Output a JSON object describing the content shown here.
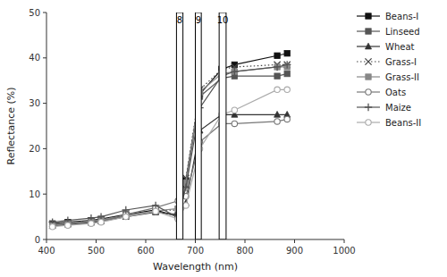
{
  "chart_data": {
    "type": "line",
    "xlabel": "Wavelength (nm)",
    "ylabel": "Reflectance (%)",
    "x": [
      412,
      443,
      490,
      510,
      560,
      620,
      665,
      681,
      709,
      753,
      779,
      865,
      885
    ],
    "series": [
      {
        "name": "Beans-I",
        "color": "#111111",
        "marker": "square",
        "line_style": "solid",
        "values": [
          3.5,
          3.8,
          4.2,
          4.5,
          5.5,
          6.5,
          5.0,
          13.0,
          32.0,
          37.5,
          38.5,
          40.5,
          41.0
        ]
      },
      {
        "name": "Linseed",
        "color": "#555555",
        "marker": "square",
        "line_style": "solid",
        "values": [
          3.2,
          3.5,
          3.9,
          4.2,
          5.2,
          6.2,
          5.2,
          12.0,
          31.5,
          35.5,
          36.0,
          36.0,
          36.5
        ]
      },
      {
        "name": "Wheat",
        "color": "#333333",
        "marker": "triangle",
        "line_style": "solid",
        "values": [
          3.0,
          3.3,
          3.7,
          4.0,
          5.0,
          6.0,
          5.5,
          8.0,
          24.0,
          27.5,
          27.5,
          27.5,
          27.5
        ]
      },
      {
        "name": "Grass-I",
        "color": "#444444",
        "marker": "x",
        "line_style": "dotted",
        "values": [
          3.4,
          3.7,
          4.1,
          4.4,
          5.4,
          6.4,
          6.5,
          13.5,
          33.0,
          37.5,
          38.0,
          38.5,
          38.5
        ]
      },
      {
        "name": "Grass-II",
        "color": "#888888",
        "marker": "square",
        "line_style": "solid",
        "values": [
          3.3,
          3.6,
          4.0,
          4.3,
          5.3,
          6.3,
          6.8,
          12.5,
          32.5,
          36.5,
          37.0,
          38.0,
          38.0
        ]
      },
      {
        "name": "Oats",
        "color": "#777777",
        "marker": "open-circle",
        "line_style": "solid",
        "values": [
          3.0,
          3.2,
          3.6,
          3.9,
          5.5,
          7.0,
          8.5,
          9.5,
          21.5,
          25.5,
          25.5,
          26.0,
          26.5
        ]
      },
      {
        "name": "Maize",
        "color": "#555555",
        "marker": "plus",
        "line_style": "solid",
        "values": [
          3.8,
          4.2,
          4.7,
          5.0,
          6.5,
          7.5,
          4.8,
          11.5,
          29.0,
          36.0,
          37.0,
          38.0,
          38.5
        ]
      },
      {
        "name": "Beans-II",
        "color": "#aaaaaa",
        "marker": "open-circle",
        "line_style": "solid",
        "values": [
          2.8,
          3.1,
          3.5,
          3.8,
          5.0,
          6.2,
          4.5,
          7.5,
          20.0,
          27.5,
          28.5,
          33.0,
          33.0
        ]
      }
    ],
    "bands": [
      {
        "label": "8",
        "xmin": 662,
        "xmax": 675
      },
      {
        "label": "9",
        "xmin": 700,
        "xmax": 712
      },
      {
        "label": "10",
        "xmin": 748,
        "xmax": 762
      }
    ],
    "xlim": [
      400,
      1000
    ],
    "ylim": [
      0,
      50
    ],
    "xticks": [
      400,
      500,
      600,
      700,
      800,
      900,
      1000
    ],
    "yticks": [
      0,
      10,
      20,
      30,
      40,
      50
    ],
    "grid": false,
    "legend": "right"
  }
}
